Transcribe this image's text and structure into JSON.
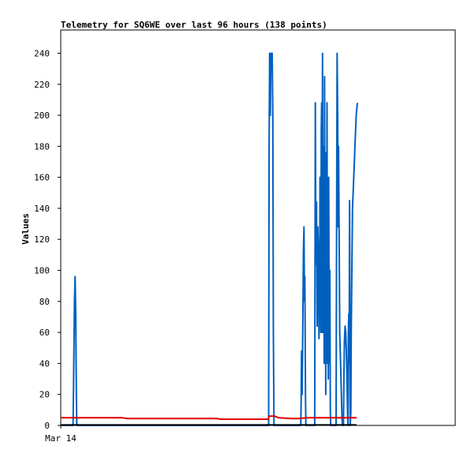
{
  "chart_data": {
    "type": "line",
    "title": "Telemetry for SQ6WE over last 96 hours (138 points)",
    "xlabel": "",
    "ylabel": "Values",
    "ylim": [
      0,
      255
    ],
    "xlim": [
      0,
      96
    ],
    "yticks": [
      0,
      20,
      40,
      60,
      80,
      100,
      120,
      140,
      160,
      180,
      200,
      220,
      240
    ],
    "xticks": [
      {
        "x": 0,
        "label": "Mar 14"
      }
    ],
    "grid": false,
    "legend": "none",
    "series": [
      {
        "color": "#0060c0",
        "points": [
          [
            0,
            0
          ],
          [
            3.0,
            0
          ],
          [
            3.1,
            20
          ],
          [
            3.2,
            48
          ],
          [
            3.35,
            80
          ],
          [
            3.5,
            96
          ],
          [
            3.65,
            72
          ],
          [
            3.8,
            20
          ],
          [
            3.9,
            0
          ],
          [
            50.6,
            0
          ],
          [
            50.7,
            180
          ],
          [
            50.85,
            240
          ],
          [
            51.0,
            200
          ],
          [
            51.15,
            240
          ],
          [
            51.3,
            232
          ],
          [
            51.45,
            240
          ],
          [
            51.6,
            200
          ],
          [
            51.75,
            60
          ],
          [
            51.9,
            0
          ],
          [
            58.4,
            0
          ],
          [
            58.5,
            15
          ],
          [
            58.6,
            48
          ],
          [
            58.75,
            20
          ],
          [
            58.9,
            64
          ],
          [
            59.05,
            112
          ],
          [
            59.2,
            128
          ],
          [
            59.3,
            80
          ],
          [
            59.4,
            96
          ],
          [
            59.55,
            20
          ],
          [
            59.65,
            0
          ],
          [
            61.8,
            0
          ],
          [
            61.95,
            208
          ],
          [
            62.1,
            104
          ],
          [
            62.25,
            144
          ],
          [
            62.4,
            64
          ],
          [
            62.55,
            128
          ],
          [
            62.7,
            112
          ],
          [
            62.85,
            56
          ],
          [
            63.0,
            80
          ],
          [
            63.1,
            160
          ],
          [
            63.2,
            100
          ],
          [
            63.3,
            60
          ],
          [
            63.4,
            190
          ],
          [
            63.5,
            208
          ],
          [
            63.6,
            60
          ],
          [
            63.7,
            240
          ],
          [
            63.8,
            60
          ],
          [
            63.9,
            140
          ],
          [
            64.0,
            180
          ],
          [
            64.1,
            40
          ],
          [
            64.2,
            225
          ],
          [
            64.3,
            70
          ],
          [
            64.4,
            176
          ],
          [
            64.5,
            20
          ],
          [
            64.6,
            160
          ],
          [
            64.7,
            40
          ],
          [
            64.8,
            208
          ],
          [
            64.9,
            60
          ],
          [
            65.0,
            120
          ],
          [
            65.1,
            30
          ],
          [
            65.2,
            160
          ],
          [
            65.3,
            80
          ],
          [
            65.4,
            40
          ],
          [
            65.5,
            100
          ],
          [
            65.6,
            10
          ],
          [
            65.7,
            0
          ],
          [
            67.0,
            0
          ],
          [
            67.1,
            100
          ],
          [
            67.25,
            240
          ],
          [
            67.4,
            200
          ],
          [
            67.5,
            128
          ],
          [
            67.6,
            180
          ],
          [
            67.75,
            120
          ],
          [
            67.9,
            60
          ],
          [
            68.1,
            40
          ],
          [
            68.3,
            20
          ],
          [
            68.45,
            5
          ],
          [
            68.55,
            0
          ],
          [
            68.8,
            0
          ],
          [
            68.9,
            30
          ],
          [
            69.05,
            55
          ],
          [
            69.2,
            64
          ],
          [
            69.35,
            60
          ],
          [
            69.5,
            48
          ],
          [
            69.65,
            30
          ],
          [
            69.8,
            10
          ],
          [
            69.9,
            0
          ],
          [
            70.0,
            60
          ],
          [
            70.1,
            72
          ],
          [
            70.2,
            40
          ],
          [
            70.3,
            145
          ],
          [
            70.45,
            0
          ],
          [
            70.6,
            8
          ],
          [
            70.7,
            60
          ],
          [
            71.0,
            140
          ],
          [
            71.3,
            160
          ],
          [
            71.6,
            180
          ],
          [
            71.9,
            200
          ],
          [
            72.2,
            208
          ]
        ]
      },
      {
        "color": "#e00000",
        "points": [
          [
            0,
            5
          ],
          [
            15,
            5
          ],
          [
            16,
            4.5
          ],
          [
            38,
            4.5
          ],
          [
            39,
            4
          ],
          [
            50.5,
            4
          ],
          [
            50.7,
            6
          ],
          [
            52,
            6
          ],
          [
            53,
            5
          ],
          [
            56,
            4.5
          ],
          [
            58,
            4.5
          ],
          [
            60,
            5
          ],
          [
            72,
            5
          ]
        ]
      },
      {
        "color": "#000000",
        "points": [
          [
            0,
            0.3
          ],
          [
            72,
            0.3
          ]
        ]
      }
    ]
  }
}
